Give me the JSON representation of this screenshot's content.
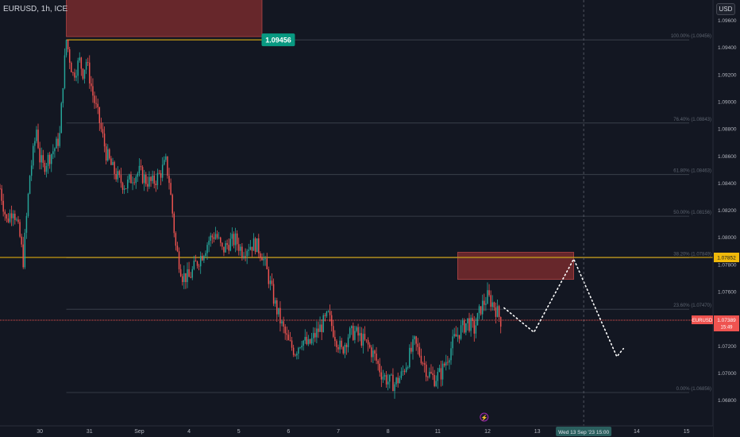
{
  "header": {
    "symbol_title": "EURUSD, 1h, ICE",
    "currency_label": "USD"
  },
  "colors": {
    "background": "#131722",
    "up": "#26a69a",
    "down": "#ef5350",
    "zone_fill": "#8b2f2f",
    "horizontal_line": "#f0b90b",
    "last_price_line": "#ef5350",
    "fib_line": "#3f4650",
    "projection": "#ffffff"
  },
  "chart_data": {
    "type": "candlestick",
    "x_labels": [
      {
        "label": "30",
        "x": 2
      },
      {
        "label": "31",
        "x": 17
      },
      {
        "label": "Sep",
        "x": 32
      },
      {
        "label": "4",
        "x": 47
      },
      {
        "label": "5",
        "x": 62
      },
      {
        "label": "6",
        "x": 77
      },
      {
        "label": "7",
        "x": 92
      },
      {
        "label": "8",
        "x": 107
      },
      {
        "label": "11",
        "x": 122
      },
      {
        "label": "12",
        "x": 137
      },
      {
        "label": "13",
        "x": 152
      },
      {
        "label": "14",
        "x": 182
      },
      {
        "label": "15",
        "x": 197
      }
    ],
    "x_range": [
      -10,
      205
    ],
    "y_range": [
      1.0661,
      1.0975
    ],
    "y_ticks": [
      1.068,
      1.07,
      1.072,
      1.074,
      1.076,
      1.078,
      1.08,
      1.082,
      1.084,
      1.086,
      1.088,
      1.09,
      1.092,
      1.094,
      1.096
    ],
    "price_keypoints": [
      [
        -10,
        1.0836
      ],
      [
        -8,
        1.0812
      ],
      [
        -6,
        1.0822
      ],
      [
        -4,
        1.08
      ],
      [
        -3,
        1.0783
      ],
      [
        -1,
        1.0846
      ],
      [
        0,
        1.0862
      ],
      [
        1,
        1.088
      ],
      [
        2,
        1.0858
      ],
      [
        3,
        1.0852
      ],
      [
        5,
        1.086
      ],
      [
        7,
        1.0868
      ],
      [
        8,
        1.0875
      ],
      [
        9,
        1.0915
      ],
      [
        10,
        1.09456
      ],
      [
        11,
        1.0932
      ],
      [
        12,
        1.092
      ],
      [
        14,
        1.093
      ],
      [
        15,
        1.0922
      ],
      [
        16,
        1.093
      ],
      [
        17,
        1.0918
      ],
      [
        18,
        1.0905
      ],
      [
        20,
        1.0885
      ],
      [
        22,
        1.0862
      ],
      [
        24,
        1.085
      ],
      [
        26,
        1.0842
      ],
      [
        28,
        1.0838
      ],
      [
        30,
        1.0845
      ],
      [
        32,
        1.0848
      ],
      [
        34,
        1.0842
      ],
      [
        36,
        1.084
      ],
      [
        38,
        1.0846
      ],
      [
        40,
        1.0855
      ],
      [
        41,
        1.0842
      ],
      [
        42,
        1.0818
      ],
      [
        43,
        1.0793
      ],
      [
        45,
        1.0772
      ],
      [
        47,
        1.077
      ],
      [
        49,
        1.078
      ],
      [
        51,
        1.0788
      ],
      [
        53,
        1.0798
      ],
      [
        55,
        1.0803
      ],
      [
        57,
        1.079
      ],
      [
        59,
        1.0796
      ],
      [
        61,
        1.0798
      ],
      [
        63,
        1.079
      ],
      [
        65,
        1.0794
      ],
      [
        67,
        1.0795
      ],
      [
        69,
        1.0788
      ],
      [
        71,
        1.077
      ],
      [
        73,
        1.075
      ],
      [
        75,
        1.0735
      ],
      [
        77,
        1.0722
      ],
      [
        79,
        1.0716
      ],
      [
        81,
        1.0725
      ],
      [
        83,
        1.072
      ],
      [
        85,
        1.0728
      ],
      [
        87,
        1.0735
      ],
      [
        89,
        1.0742
      ],
      [
        91,
        1.0728
      ],
      [
        93,
        1.0716
      ],
      [
        95,
        1.0728
      ],
      [
        97,
        1.073
      ],
      [
        99,
        1.0725
      ],
      [
        101,
        1.072
      ],
      [
        103,
        1.0712
      ],
      [
        105,
        1.07
      ],
      [
        107,
        1.0694
      ],
      [
        109,
        1.0692
      ],
      [
        111,
        1.0698
      ],
      [
        113,
        1.071
      ],
      [
        115,
        1.0722
      ],
      [
        117,
        1.0712
      ],
      [
        119,
        1.07
      ],
      [
        121,
        1.0696
      ],
      [
        123,
        1.07
      ],
      [
        125,
        1.0712
      ],
      [
        127,
        1.0725
      ],
      [
        129,
        1.0732
      ],
      [
        131,
        1.0738
      ],
      [
        133,
        1.0732
      ],
      [
        135,
        1.0748
      ],
      [
        137,
        1.0756
      ],
      [
        139,
        1.075
      ],
      [
        141,
        1.07389
      ]
    ],
    "zones": [
      {
        "x0": 10,
        "x1": 69,
        "y0": 1.0948,
        "y1": 1.099
      },
      {
        "x0": 128,
        "x1": 163,
        "y0": 1.0769,
        "y1": 1.0789
      }
    ],
    "horizontal_lines": [
      {
        "y": 1.07852,
        "label": "1.07852",
        "color": "#f0b90b"
      }
    ],
    "peak_line": {
      "x0": 10,
      "x1": 69,
      "y": 1.09456
    },
    "peak_badge": {
      "label": "1.09456",
      "x": 69,
      "y": 1.09456
    },
    "last_price": {
      "y": 1.07389,
      "label": "1.07389",
      "symbol": "EURUSD",
      "countdown": "15:49"
    },
    "fib_levels": [
      {
        "y": 1.09456,
        "label": "100.00% (1.09456)"
      },
      {
        "y": 1.08843,
        "label": "76.40% (1.08843)"
      },
      {
        "y": 1.08463,
        "label": "61.80% (1.08463)"
      },
      {
        "y": 1.08156,
        "label": "50.00% (1.08156)"
      },
      {
        "y": 1.07849,
        "label": "38.20% (1.07849)"
      },
      {
        "y": 1.0747,
        "label": "23.60% (1.07470)"
      },
      {
        "y": 1.06856,
        "label": "0.00% (1.06856)"
      }
    ],
    "projection_path": [
      [
        142,
        1.0748
      ],
      [
        151,
        1.073
      ],
      [
        163,
        1.0784
      ],
      [
        176,
        1.0712
      ],
      [
        178,
        1.0718
      ]
    ],
    "crosshair": {
      "x": 166,
      "label": "Wed 13 Sep '23   15:00"
    },
    "flash_marker": {
      "x": 136,
      "symbol": "⚡"
    }
  }
}
